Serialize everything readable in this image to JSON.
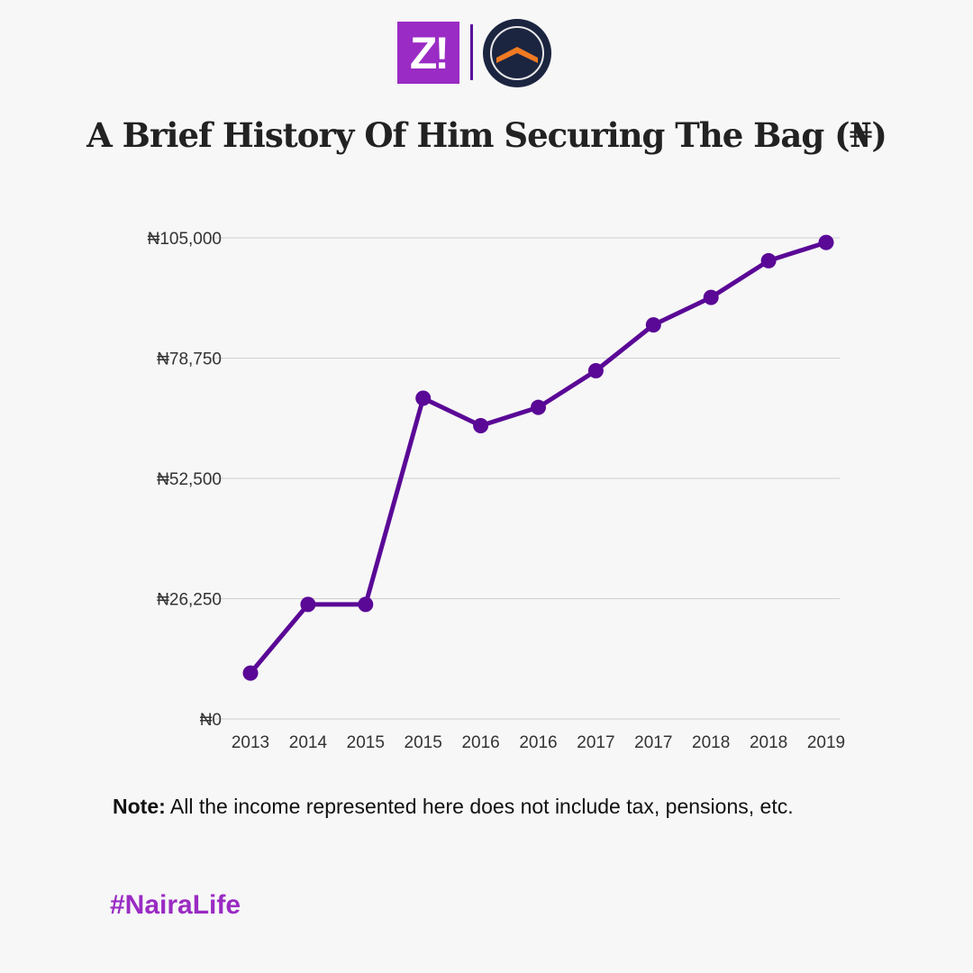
{
  "logos": {
    "left_text": "Z!",
    "right": "circle-roof-logo"
  },
  "colors": {
    "line": "#5a0896",
    "brand": "#9a2bc4",
    "logo_navy": "#1b2540",
    "logo_orange": "#f07a22"
  },
  "chart_data": {
    "type": "line",
    "title": "A Brief History Of Him Securing The Bag (₦)",
    "categories": [
      "2013",
      "2014",
      "2015",
      "2015",
      "2016",
      "2016",
      "2017",
      "2017",
      "2018",
      "2018",
      "2019"
    ],
    "values": [
      10000,
      25000,
      25000,
      70000,
      64000,
      68000,
      76000,
      86000,
      92000,
      100000,
      104000
    ],
    "ylim": [
      0,
      105000
    ],
    "yticks": [
      0,
      26250,
      52500,
      78750,
      105000
    ],
    "ytick_labels": [
      "₦0",
      "₦26,250",
      "₦52,500",
      "₦78,750",
      "₦105,000"
    ],
    "xlabel": "",
    "ylabel": "",
    "grid": true
  },
  "note": {
    "label": "Note:",
    "text": " All the income represented here does not include tax, pensions, etc."
  },
  "hashtag": "#NairaLife"
}
